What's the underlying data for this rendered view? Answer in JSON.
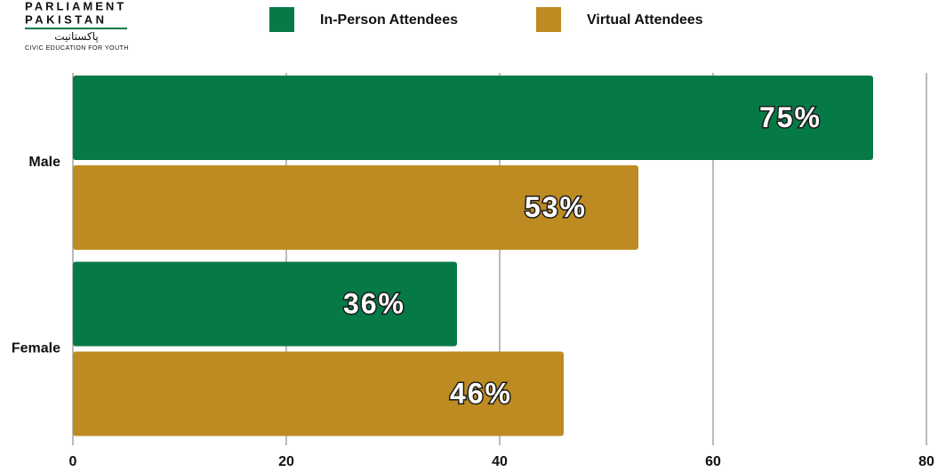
{
  "logo": {
    "line1": "PARLIAMENT",
    "line2": "PAKISTAN",
    "urdu": "پاکستانیت",
    "tagline": "CIVIC EDUCATION FOR YOUTH"
  },
  "chart_data": {
    "type": "hbar",
    "categories": [
      "Male",
      "Female"
    ],
    "series": [
      {
        "name": "In-Person Attendees",
        "color": "#067a46",
        "values": [
          75,
          36
        ],
        "value_labels": [
          "75%",
          "36%"
        ]
      },
      {
        "name": "Virtual Attendees",
        "color": "#bd8b22",
        "values": [
          53,
          46
        ],
        "value_labels": [
          "53%",
          "46%"
        ]
      }
    ],
    "xlim": [
      0,
      80
    ],
    "xticks": [
      0,
      20,
      40,
      60,
      80
    ],
    "grid": true,
    "legend": "top"
  }
}
